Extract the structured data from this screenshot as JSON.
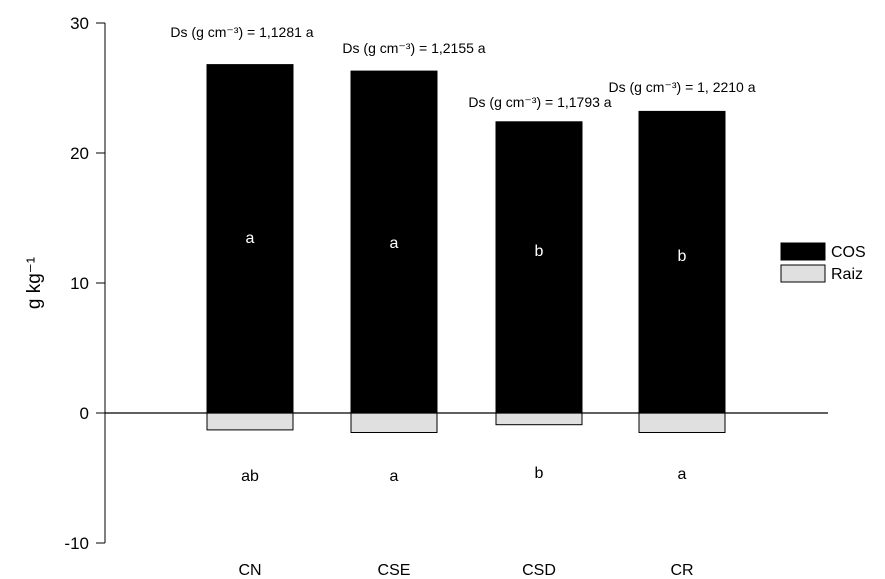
{
  "chart_data": {
    "type": "bar",
    "stacked": true,
    "categories": [
      "CN",
      "CSE",
      "CSD",
      "CR"
    ],
    "series": [
      {
        "name": "COS",
        "color": "#000000",
        "values": [
          26.8,
          26.3,
          22.4,
          23.2
        ],
        "letters": [
          "a",
          "a",
          "b",
          "b"
        ]
      },
      {
        "name": "Raiz",
        "color": "#e0e0e0",
        "values": [
          -1.3,
          -1.5,
          -0.9,
          -1.5
        ],
        "letters": [
          "ab",
          "a",
          "b",
          "a"
        ]
      }
    ],
    "annotations": [
      "Ds (g cm⁻³) = 1,1281  a",
      "Ds (g cm⁻³) = 1,2155 a",
      "Ds (g cm⁻³) = 1,1793 a",
      "Ds (g cm⁻³) = 1, 2210 a"
    ],
    "ylabel": "g kg⁻¹",
    "xlabel": "",
    "title": "",
    "ylim": [
      -10,
      30
    ],
    "yticks": [
      -10,
      0,
      10,
      20,
      30
    ],
    "legend_position": "right",
    "grid": false
  }
}
